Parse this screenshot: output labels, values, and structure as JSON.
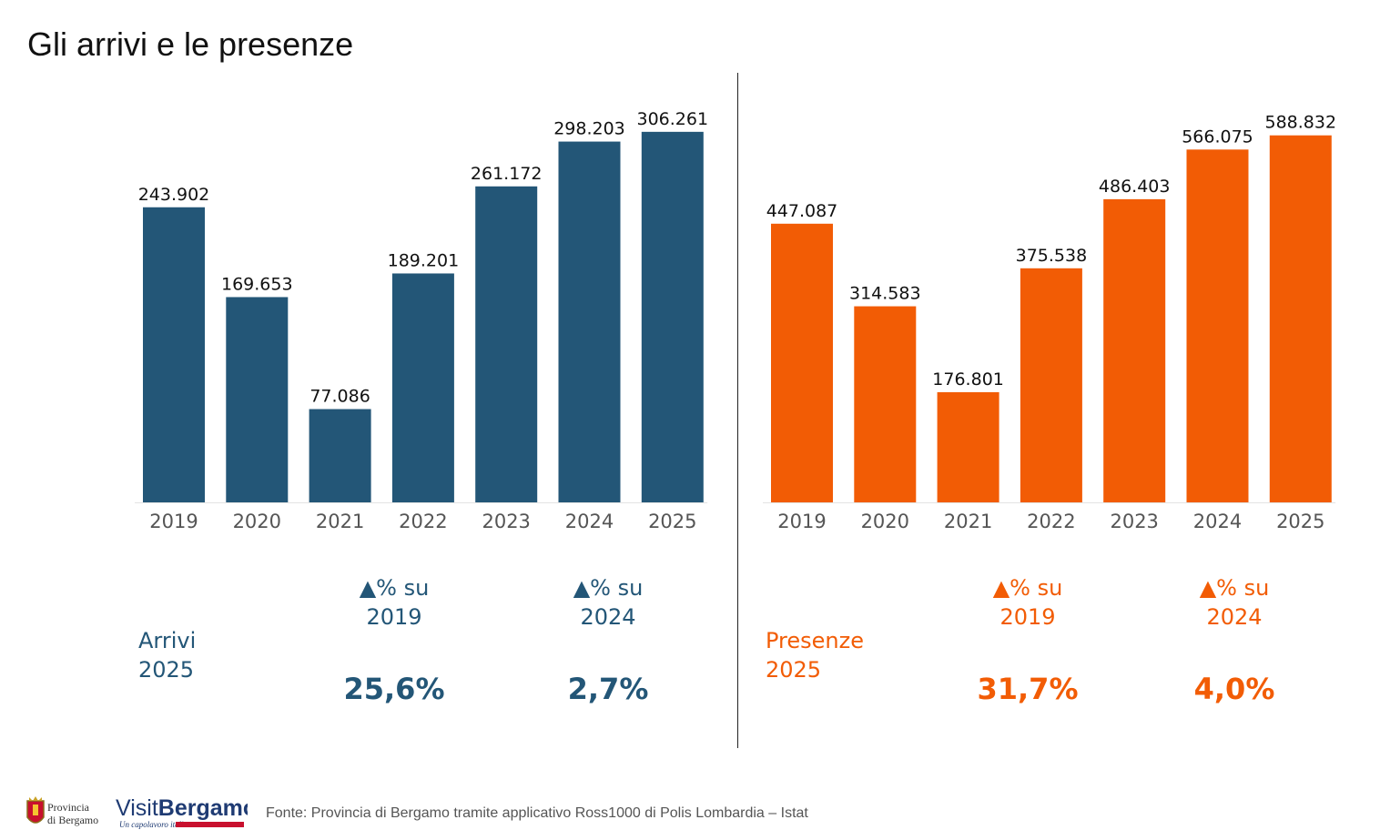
{
  "title": "Gli arrivi e le presenze",
  "colors": {
    "arrivi": "#235677",
    "presenze": "#F25C05",
    "axis_text": "#555555"
  },
  "chart_data": [
    {
      "type": "bar",
      "categories": [
        "2019",
        "2020",
        "2021",
        "2022",
        "2023",
        "2024",
        "2025"
      ],
      "values": [
        243902,
        169653,
        77086,
        189201,
        261172,
        298203,
        306261
      ],
      "value_labels": [
        "243.902",
        "169.653",
        "77.086",
        "189.201",
        "261.172",
        "298.203",
        "306.261"
      ],
      "ylim": [
        0,
        340000
      ]
    },
    {
      "type": "bar",
      "categories": [
        "2019",
        "2020",
        "2021",
        "2022",
        "2023",
        "2024",
        "2025"
      ],
      "values": [
        447087,
        314583,
        176801,
        375538,
        486403,
        566075,
        588832
      ],
      "value_labels": [
        "447.087",
        "314.583",
        "176.801",
        "375.538",
        "486.403",
        "566.075",
        "588.832"
      ],
      "ylim": [
        0,
        660000
      ]
    }
  ],
  "arrivi_stats": {
    "label_line1": "Arrivi",
    "label_line2": "2025",
    "head1_line1": "▲% su",
    "head1_line2": "2019",
    "head2_line1": "▲% su",
    "head2_line2": "2024",
    "value1": "25,6%",
    "value2": "2,7%"
  },
  "presenze_stats": {
    "label_line1": "Presenze",
    "label_line2": "2025",
    "head1_line1": "▲% su",
    "head1_line2": "2019",
    "head2_line1": "▲% su",
    "head2_line2": "2024",
    "value1": "31,7%",
    "value2": "4,0%"
  },
  "footer": {
    "source": "Fonte: Provincia di Bergamo tramite applicativo Ross1000 di Polis Lombardia – Istat",
    "provincia_logo_line1": "Provincia",
    "provincia_logo_line2": "di Bergamo",
    "visit_logo_a": "Visit",
    "visit_logo_b": "Bergamo",
    "visit_tagline": "Un capolavoro italiano"
  }
}
